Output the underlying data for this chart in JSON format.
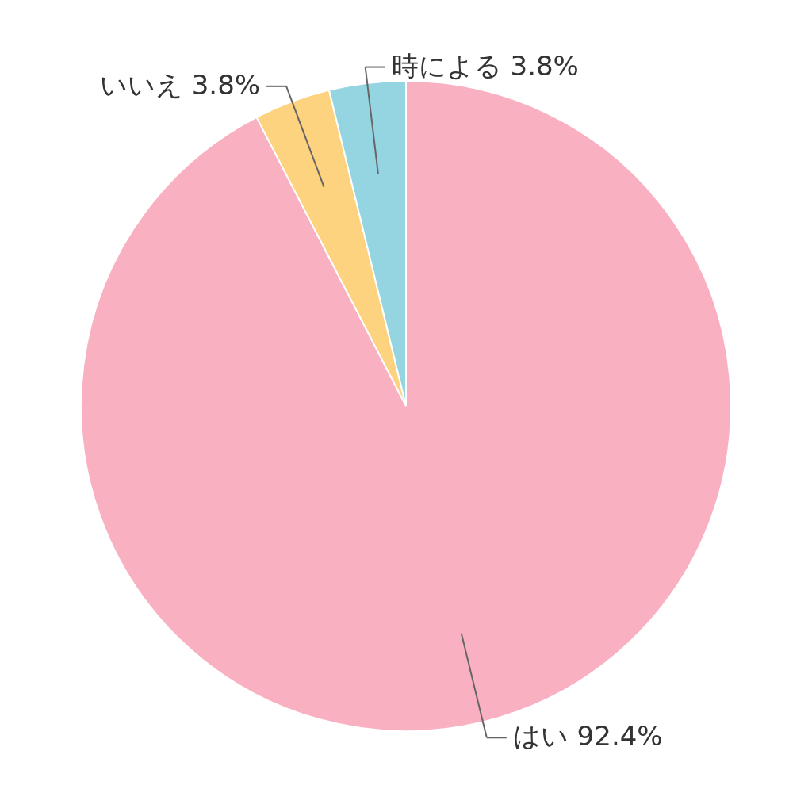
{
  "chart_data": {
    "type": "pie",
    "categories": [
      "はい",
      "いいえ",
      "時による"
    ],
    "values": [
      92.4,
      3.8,
      3.8
    ],
    "value_labels": [
      "92.4%",
      "3.8%",
      "3.8%"
    ],
    "colors": [
      "#f9b1c2",
      "#fdd380",
      "#95d5e1"
    ]
  }
}
